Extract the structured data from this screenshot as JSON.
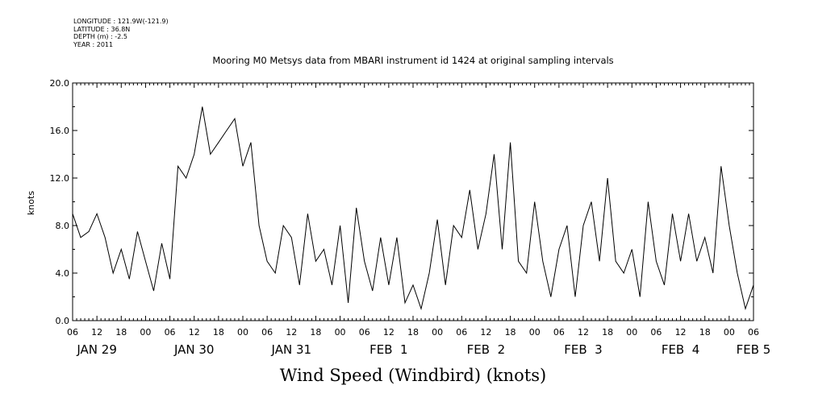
{
  "meta": {
    "longitude": "LONGITUDE : 121.9W(-121.9)",
    "latitude": "LATITUDE : 36.8N",
    "depth": "DEPTH (m) : -2.5",
    "year": "YEAR : 2011"
  },
  "chart_data": {
    "type": "line",
    "title": "Mooring M0 Metsys data from MBARI instrument id 1424 at original sampling intervals",
    "xlabel": "Wind Speed (Windbird) (knots)",
    "ylabel": "knots",
    "ylim": [
      0,
      20
    ],
    "yticks": [
      "0.0",
      "4.0",
      "8.0",
      "12.0",
      "16.0",
      "20.0"
    ],
    "xlim_hours": [
      0,
      168
    ],
    "hour_ticks": [
      "06",
      "12",
      "18",
      "00",
      "06",
      "12",
      "18",
      "00",
      "06",
      "12",
      "18",
      "00",
      "06",
      "12",
      "18",
      "00",
      "06",
      "12",
      "18",
      "00",
      "06",
      "12",
      "18",
      "00",
      "06",
      "12",
      "18",
      "00",
      "06"
    ],
    "day_labels": [
      {
        "label": "JAN 29",
        "hour": 6
      },
      {
        "label": "JAN 30",
        "hour": 30
      },
      {
        "label": "JAN 31",
        "hour": 54
      },
      {
        "label": "FEB  1",
        "hour": 78
      },
      {
        "label": "FEB  2",
        "hour": 102
      },
      {
        "label": "FEB  3",
        "hour": 126
      },
      {
        "label": "FEB  4",
        "hour": 150
      },
      {
        "label": "FEB 5",
        "hour": 168
      }
    ],
    "series": [
      {
        "name": "",
        "x": [
          0,
          2,
          4,
          6,
          8,
          10,
          12,
          14,
          16,
          18,
          20,
          22,
          24,
          26,
          28,
          30,
          32,
          34,
          36,
          38,
          40,
          42,
          44,
          46,
          48,
          50,
          52,
          54,
          56,
          58,
          60,
          62,
          64,
          66,
          68,
          70,
          72,
          74,
          76,
          78,
          80,
          82,
          84,
          86,
          88,
          90,
          92,
          94,
          96,
          98,
          100,
          102,
          104,
          106,
          108,
          110,
          112,
          114,
          116,
          118,
          120,
          122,
          124,
          126,
          128,
          130,
          132,
          134,
          136,
          138,
          140,
          142,
          144,
          146,
          148,
          150,
          152,
          154,
          156,
          158,
          160,
          162,
          164,
          166,
          168
        ],
        "y": [
          9,
          7,
          7.5,
          9,
          7,
          4,
          6,
          3.5,
          7.5,
          5,
          2.5,
          6.5,
          3.5,
          13,
          12,
          14,
          18,
          14,
          15,
          16,
          17,
          13,
          15,
          8,
          5,
          4,
          8,
          7,
          3,
          9,
          5,
          6,
          3,
          8,
          1.5,
          9.5,
          5,
          2.5,
          7,
          3,
          7,
          1.5,
          3,
          1,
          4,
          8.5,
          3,
          8,
          7,
          11,
          6,
          9,
          14,
          6,
          15,
          5,
          4,
          10,
          5,
          2,
          6,
          8,
          2,
          8,
          10,
          5,
          12,
          5,
          4,
          6,
          2,
          10,
          5,
          3,
          9,
          5,
          9,
          5,
          7,
          4,
          13,
          8,
          4,
          1,
          3
        ]
      }
    ]
  }
}
